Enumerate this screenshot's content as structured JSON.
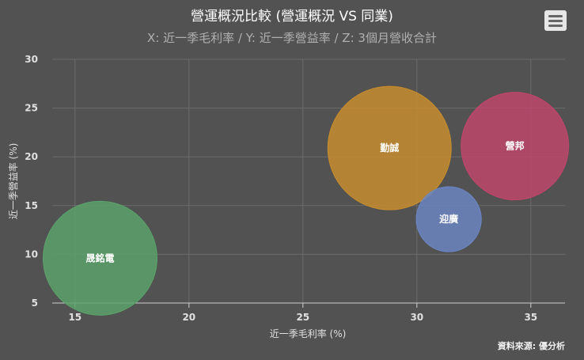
{
  "chart_data": {
    "type": "bubble",
    "title": "營運概況比較 (營運概況 VS 同業)",
    "subtitle": "X: 近一季毛利率 / Y: 近一季營益率 / Z: 3個月營收合計",
    "xlabel": "近一季毛利率 (%)",
    "ylabel": "近一季營益率 (%)",
    "xlim": [
      14,
      36.5
    ],
    "ylim": [
      5,
      30
    ],
    "xticks": [
      15,
      20,
      25,
      30,
      35
    ],
    "yticks": [
      5,
      10,
      15,
      20,
      25,
      30
    ],
    "grid": true,
    "points": [
      {
        "label": "晟銘電",
        "x": 16.1,
        "y": 9.6,
        "size": 46,
        "color": "#5aa36a"
      },
      {
        "label": "勤誠",
        "x": 28.8,
        "y": 20.9,
        "size": 54,
        "color": "#c98d2c"
      },
      {
        "label": "迎廣",
        "x": 31.4,
        "y": 13.6,
        "size": 15,
        "color": "#6b86c4"
      },
      {
        "label": "營邦",
        "x": 34.3,
        "y": 21.1,
        "size": 41,
        "color": "#c2456b"
      }
    ]
  },
  "credits": "資料來源: 優分析",
  "menu_icon": "hamburger-menu-icon"
}
